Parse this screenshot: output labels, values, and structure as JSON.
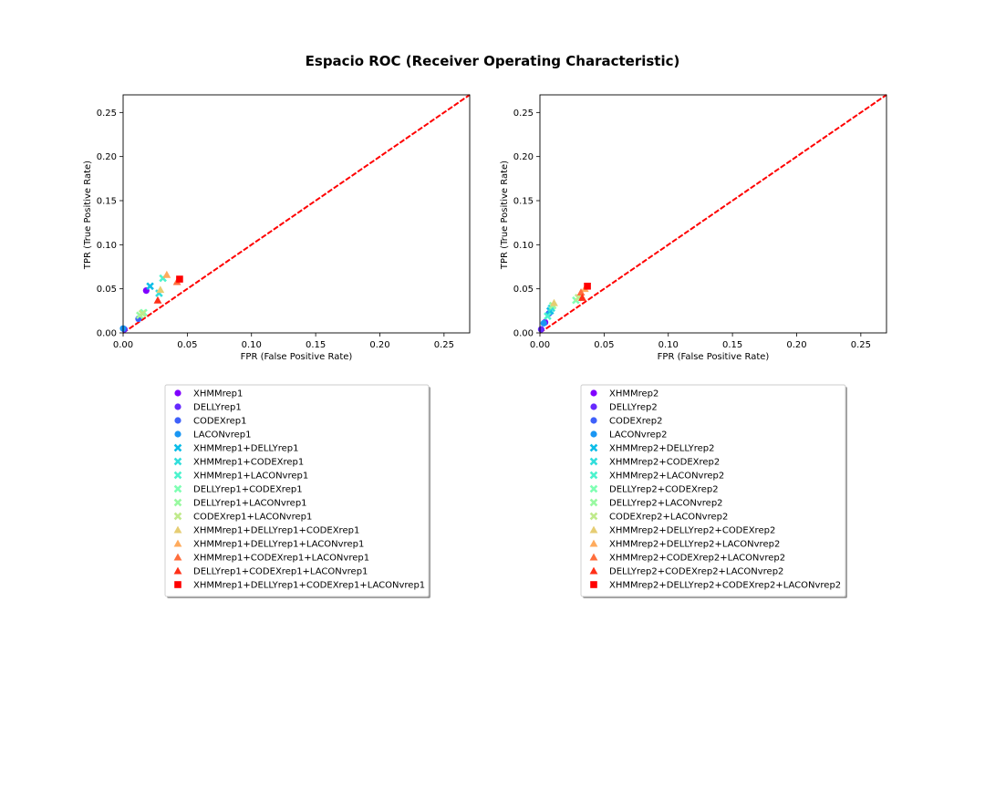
{
  "title": "Espacio ROC (Receiver Operating Characteristic)",
  "chart_data": [
    {
      "type": "scatter",
      "xlabel": "FPR (False Positive Rate)",
      "ylabel": "TPR (True Positive Rate)",
      "xlim": [
        0,
        0.27
      ],
      "ylim": [
        0,
        0.27
      ],
      "xticks": [
        "0.00",
        "0.05",
        "0.10",
        "0.15",
        "0.20",
        "0.25"
      ],
      "yticks": [
        "0.00",
        "0.05",
        "0.10",
        "0.15",
        "0.20",
        "0.25"
      ],
      "diagonal": {
        "color": "#ff0000",
        "style": "dashed"
      },
      "legend_position": "below",
      "series": [
        {
          "name": "XHMMrep1",
          "marker": "circle",
          "color": "#8000ff",
          "x": 0.018,
          "y": 0.048
        },
        {
          "name": "DELLYrep1",
          "marker": "circle",
          "color": "#6629fe",
          "x": 0.001,
          "y": 0.004
        },
        {
          "name": "CODEXrep1",
          "marker": "circle",
          "color": "#3f61fa",
          "x": 0.012,
          "y": 0.016
        },
        {
          "name": "LACONvrep1",
          "marker": "circle",
          "color": "#1996f3",
          "x": 0.0,
          "y": 0.005
        },
        {
          "name": "XHMMrep1+DELLYrep1",
          "marker": "x",
          "color": "#0dbde8",
          "x": 0.021,
          "y": 0.053
        },
        {
          "name": "XHMMrep1+CODEXrep1",
          "marker": "x",
          "color": "#33dedc",
          "x": 0.028,
          "y": 0.045
        },
        {
          "name": "XHMMrep1+LACONvrep1",
          "marker": "x",
          "color": "#4df3ce",
          "x": 0.031,
          "y": 0.062
        },
        {
          "name": "DELLYrep1+CODEXrep1",
          "marker": "x",
          "color": "#80ffb4",
          "x": 0.016,
          "y": 0.023
        },
        {
          "name": "DELLYrep1+LACONvrep1",
          "marker": "x",
          "color": "#99f9a1",
          "x": 0.013,
          "y": 0.02
        },
        {
          "name": "CODEXrep1+LACONvrep1",
          "marker": "x",
          "color": "#c0ea8c",
          "x": 0.015,
          "y": 0.022
        },
        {
          "name": "XHMMrep1+DELLYrep1+CODEXrep1",
          "marker": "triangle",
          "color": "#e6cd73",
          "x": 0.029,
          "y": 0.049
        },
        {
          "name": "XHMMrep1+DELLYrep1+LACONvrep1",
          "marker": "triangle",
          "color": "#ffab5d",
          "x": 0.034,
          "y": 0.066
        },
        {
          "name": "XHMMrep1+CODEXrep1+LACONvrep1",
          "marker": "triangle",
          "color": "#ff6e3c",
          "x": 0.042,
          "y": 0.058
        },
        {
          "name": "DELLYrep1+CODEXrep1+LACONvrep1",
          "marker": "triangle",
          "color": "#ff3018",
          "x": 0.027,
          "y": 0.037
        },
        {
          "name": "XHMMrep1+DELLYrep1+CODEXrep1+LACONvrep1",
          "marker": "square",
          "color": "#ff0000",
          "x": 0.044,
          "y": 0.061
        }
      ]
    },
    {
      "type": "scatter",
      "xlabel": "FPR (False Positive Rate)",
      "ylabel": "TPR (True Positive Rate)",
      "xlim": [
        0,
        0.27
      ],
      "ylim": [
        0,
        0.27
      ],
      "xticks": [
        "0.00",
        "0.05",
        "0.10",
        "0.15",
        "0.20",
        "0.25"
      ],
      "yticks": [
        "0.00",
        "0.05",
        "0.10",
        "0.15",
        "0.20",
        "0.25"
      ],
      "diagonal": {
        "color": "#ff0000",
        "style": "dashed"
      },
      "legend_position": "below",
      "series": [
        {
          "name": "XHMMrep2",
          "marker": "circle",
          "color": "#8000ff",
          "x": 0.004,
          "y": 0.012
        },
        {
          "name": "DELLYrep2",
          "marker": "circle",
          "color": "#6629fe",
          "x": 0.001,
          "y": 0.004
        },
        {
          "name": "CODEXrep2",
          "marker": "circle",
          "color": "#3f61fa",
          "x": 0.007,
          "y": 0.022
        },
        {
          "name": "LACONvrep2",
          "marker": "circle",
          "color": "#1996f3",
          "x": 0.003,
          "y": 0.011
        },
        {
          "name": "XHMMrep2+DELLYrep2",
          "marker": "x",
          "color": "#0dbde8",
          "x": 0.008,
          "y": 0.025
        },
        {
          "name": "XHMMrep2+CODEXrep2",
          "marker": "x",
          "color": "#33dedc",
          "x": 0.009,
          "y": 0.028
        },
        {
          "name": "XHMMrep2+LACONvrep2",
          "marker": "x",
          "color": "#4df3ce",
          "x": 0.006,
          "y": 0.019
        },
        {
          "name": "DELLYrep2+CODEXrep2",
          "marker": "x",
          "color": "#80ffb4",
          "x": 0.028,
          "y": 0.037
        },
        {
          "name": "DELLYrep2+LACONvrep2",
          "marker": "x",
          "color": "#99f9a1",
          "x": 0.01,
          "y": 0.031
        },
        {
          "name": "CODEXrep2+LACONvrep2",
          "marker": "x",
          "color": "#c0ea8c",
          "x": 0.03,
          "y": 0.04
        },
        {
          "name": "XHMMrep2+DELLYrep2+CODEXrep2",
          "marker": "triangle",
          "color": "#e6cd73",
          "x": 0.011,
          "y": 0.034
        },
        {
          "name": "XHMMrep2+DELLYrep2+LACONvrep2",
          "marker": "triangle",
          "color": "#ffab5d",
          "x": 0.035,
          "y": 0.05
        },
        {
          "name": "XHMMrep2+CODEXrep2+LACONvrep2",
          "marker": "triangle",
          "color": "#ff6e3c",
          "x": 0.032,
          "y": 0.046
        },
        {
          "name": "DELLYrep2+CODEXrep2+LACONvrep2",
          "marker": "triangle",
          "color": "#ff3018",
          "x": 0.033,
          "y": 0.04
        },
        {
          "name": "XHMMrep2+DELLYrep2+CODEXrep2+LACONvrep2",
          "marker": "square",
          "color": "#ff0000",
          "x": 0.037,
          "y": 0.053
        }
      ]
    }
  ]
}
